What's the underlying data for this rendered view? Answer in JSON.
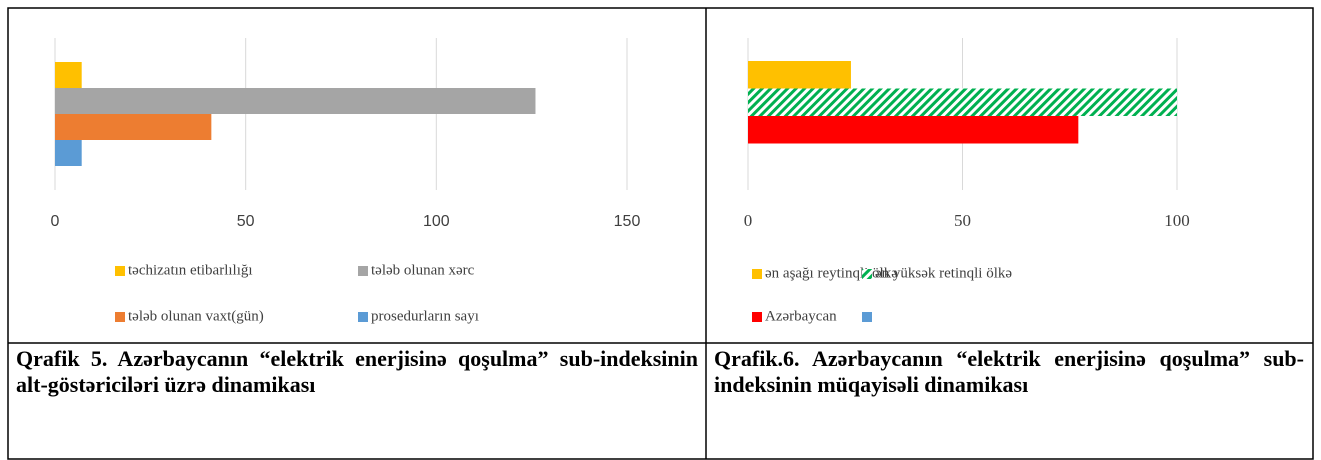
{
  "chart_data": [
    {
      "type": "bar",
      "orientation": "horizontal",
      "categories": [
        null
      ],
      "series": [
        {
          "name": "təchizatın etibarlılığı",
          "color": "#ffc000",
          "values": [
            7
          ]
        },
        {
          "name": "tələb olunan xərc",
          "color": "#a5a5a5",
          "values": [
            126
          ]
        },
        {
          "name": "tələb olunan vaxt(gün)",
          "color": "#ed7d31",
          "values": [
            41
          ]
        },
        {
          "name": "prosedurların sayı",
          "color": "#5b9bd5",
          "values": [
            7
          ]
        }
      ],
      "xlim": [
        0,
        150
      ],
      "xticks": [
        0,
        50,
        100,
        150
      ],
      "grid": true,
      "legend": "bottom"
    },
    {
      "type": "bar",
      "orientation": "horizontal",
      "categories": [
        null
      ],
      "series": [
        {
          "name": "ən aşağı reytinqli ölkə",
          "color": "#ffc000",
          "values": [
            24
          ]
        },
        {
          "name": "ən yüksək retinqli ölkə",
          "color": "#00b050",
          "hatch": true,
          "values": [
            100
          ]
        },
        {
          "name": "Azərbaycan",
          "color": "#ff0000",
          "values": [
            77
          ]
        },
        {
          "name": null,
          "color": "#5b9bd5",
          "values": [
            null
          ]
        }
      ],
      "xlim": [
        0,
        100
      ],
      "xticks": [
        0,
        50,
        100
      ],
      "grid": true,
      "legend": "bottom"
    }
  ],
  "captions": [
    "Qrafik 5. Azərbaycanın “elektrik enerjisinə qoşulma” sub-indeksinin alt-göstəriciləri üzrə dinamikası",
    "Qrafik.6. Azərbaycanın “elektrik enerjisinə qoşulma” sub-indeksinin müqayisəli dinamikası"
  ]
}
